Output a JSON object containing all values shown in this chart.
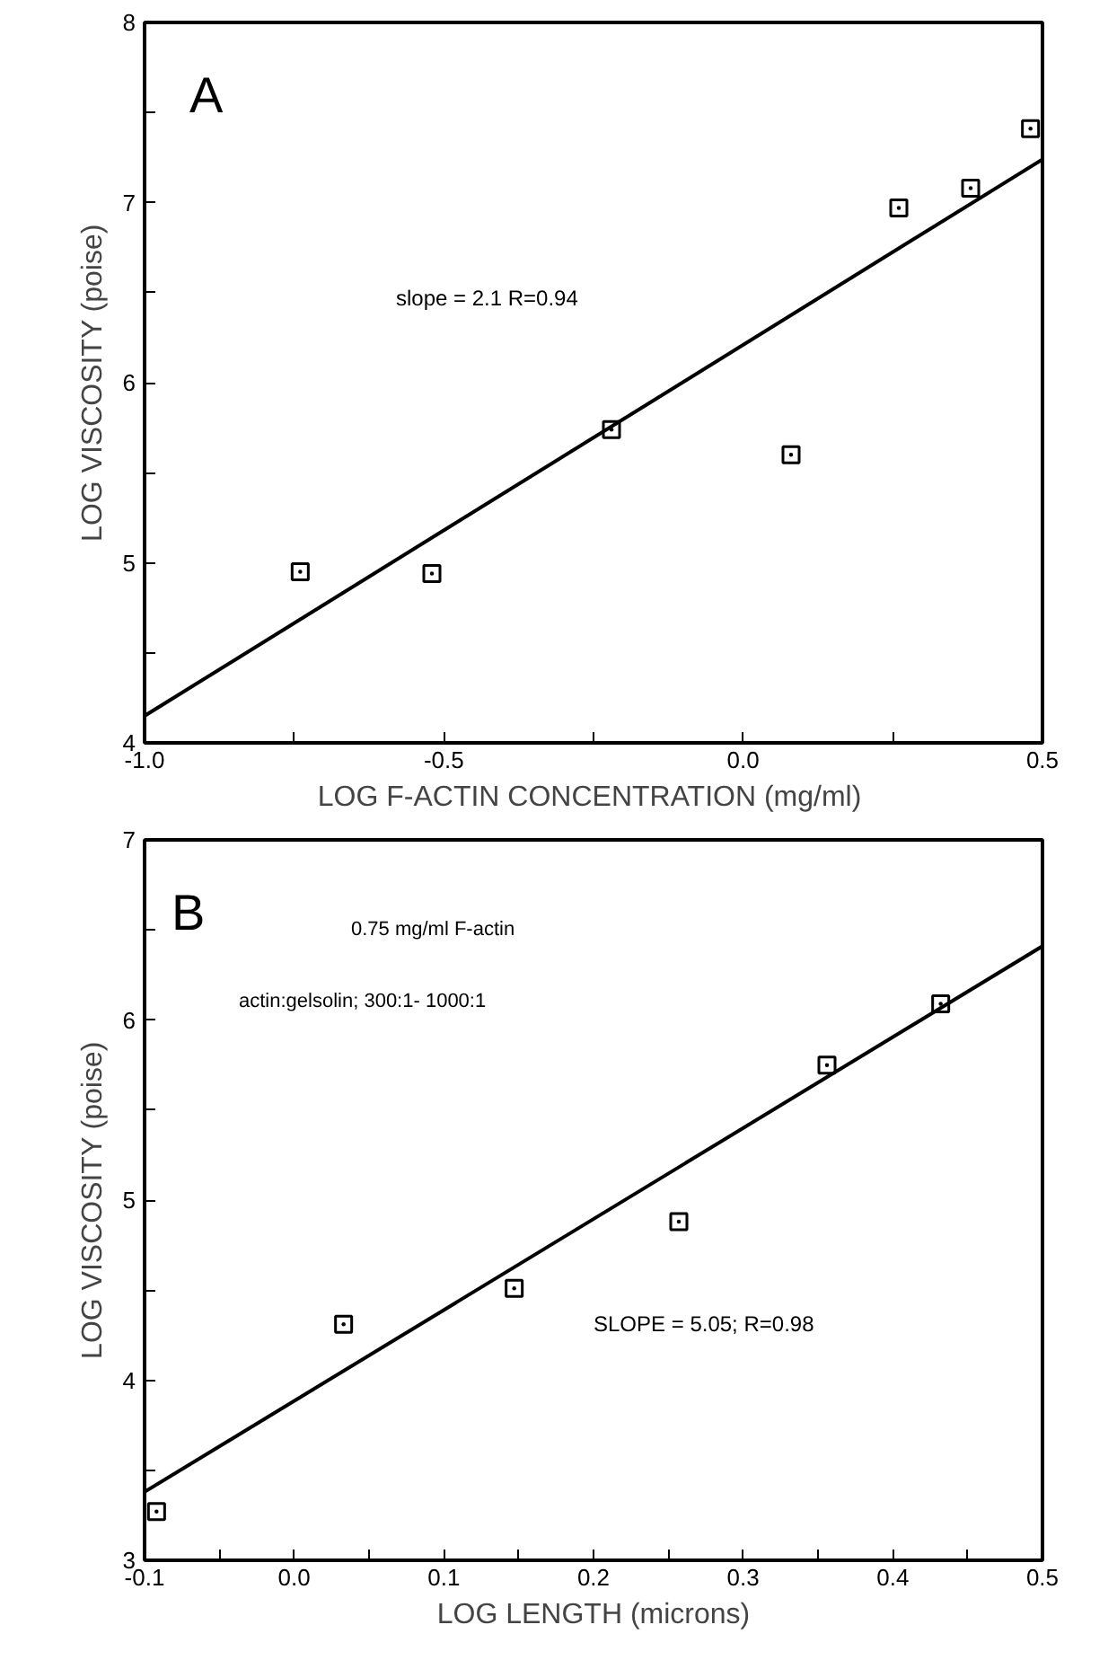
{
  "chart_data": [
    {
      "type": "scatter",
      "xlabel": "LOG  F-ACTIN CONCENTRATION (mg/ml)",
      "ylabel": "LOG VISCOSITY (poise)",
      "annotations": [
        "A",
        "slope = 2.1  R=0.94"
      ],
      "xlim": [
        -1.0,
        0.5
      ],
      "ylim": [
        4,
        8
      ],
      "xticks": [
        {
          "value": -1.0,
          "label": "-1.0"
        },
        {
          "value": -0.75,
          "label": null
        },
        {
          "value": -0.5,
          "label": "-0.5"
        },
        {
          "value": -0.25,
          "label": null
        },
        {
          "value": 0,
          "label": "0.0"
        },
        {
          "value": 0.25,
          "label": null
        },
        {
          "value": 0.5,
          "label": "0.5"
        }
      ],
      "yticks": [
        4,
        {
          "value": 4.5,
          "label": null
        },
        5,
        {
          "value": 5.5,
          "label": null
        },
        6,
        {
          "value": 6.5,
          "label": null
        },
        7,
        {
          "value": 7.5,
          "label": null
        },
        8
      ],
      "grid": false,
      "series": [
        {
          "marker": "square",
          "color": "#000000",
          "x": [
            -0.74,
            -0.52,
            -0.22,
            0.08,
            0.26,
            0.38,
            0.48
          ],
          "values": [
            4.95,
            4.94,
            5.74,
            5.6,
            6.97,
            7.08,
            7.41
          ]
        },
        {
          "type": "line",
          "marker": "none",
          "color": "#000000",
          "x": [
            -1.0,
            0.5
          ],
          "values": [
            4.15,
            7.24
          ]
        }
      ]
    },
    {
      "type": "scatter",
      "xlabel": "LOG LENGTH (microns)",
      "ylabel": "LOG VISCOSITY (poise)",
      "annotations": [
        "B",
        "0.75 mg/ml F-actin",
        "actin:gelsolin;  300:1- 1000:1",
        "SLOPE = 5.05;  R=0.98"
      ],
      "xlim": [
        -0.1,
        0.5
      ],
      "ylim": [
        3,
        7
      ],
      "xticks": [
        {
          "value": -0.1,
          "label": "-0.1"
        },
        {
          "value": -0.05,
          "label": null
        },
        {
          "value": 0,
          "label": "0.0"
        },
        {
          "value": 0.05,
          "label": null
        },
        0.1,
        {
          "value": 0.15,
          "label": null
        },
        0.2,
        {
          "value": 0.25,
          "label": null
        },
        0.3,
        {
          "value": 0.35,
          "label": null
        },
        0.4,
        {
          "value": 0.45,
          "label": null
        },
        0.5
      ],
      "yticks": [
        3,
        {
          "value": 3.5,
          "label": null
        },
        4,
        {
          "value": 4.5,
          "label": null
        },
        5,
        {
          "value": 5.5,
          "label": null
        },
        6,
        {
          "value": 6.5,
          "label": null
        },
        7
      ],
      "grid": false,
      "series": [
        {
          "marker": "square",
          "color": "#000000",
          "x": [
            -0.092,
            0.033,
            0.147,
            0.257,
            0.356,
            0.432
          ],
          "values": [
            3.27,
            4.31,
            4.51,
            4.88,
            5.75,
            6.09
          ]
        },
        {
          "type": "line",
          "marker": "none",
          "color": "#000000",
          "x": [
            -0.1,
            0.5
          ],
          "values": [
            3.38,
            6.41
          ]
        }
      ]
    }
  ]
}
